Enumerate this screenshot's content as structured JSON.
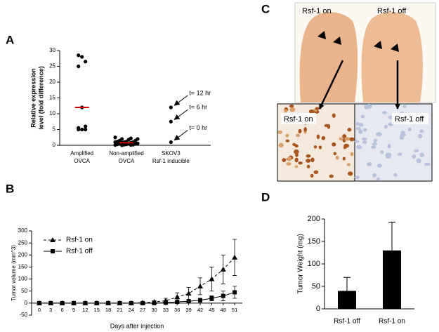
{
  "chart_data": [
    {
      "type": "strip",
      "label": "A",
      "ylabel": [
        "Relative expression",
        "level (fold difference)"
      ],
      "categories": [
        [
          "Amplified",
          "OVCA"
        ],
        [
          "Non-amplified",
          "OVCA"
        ],
        [
          "SKOV3",
          "Rsf-1 inducible"
        ]
      ],
      "values": [
        [
          28.5,
          28,
          26.5,
          25,
          12,
          6,
          5,
          5,
          5,
          5.5
        ],
        [
          2.5,
          2.2,
          2,
          2,
          1.8,
          1.5,
          1.5,
          1.2,
          1.2,
          1,
          1,
          1,
          0.8,
          0.8,
          0.6,
          0.5,
          0.5,
          0.4,
          0.3,
          0.3,
          0.2,
          0.2,
          0.1,
          0.1,
          0
        ],
        [
          12,
          7.5,
          1
        ]
      ],
      "means": [
        12,
        0.8,
        null
      ],
      "color": "#000000",
      "mean_color": "#d00000",
      "annotations": [
        "t= 12 hr",
        "t= 6 hr",
        "t= 0 hr"
      ],
      "ylim": [
        0,
        30
      ],
      "yticks": [
        0,
        5,
        10,
        15,
        20,
        25,
        30
      ]
    },
    {
      "type": "line",
      "label": "B",
      "ylabel": "Tumor volume (mm^3)",
      "xlabel": "Days after injection",
      "x": [
        0,
        3,
        6,
        9,
        12,
        15,
        18,
        21,
        24,
        27,
        30,
        33,
        36,
        39,
        42,
        45,
        48,
        51
      ],
      "xticks": [
        0,
        3,
        6,
        9,
        12,
        15,
        18,
        21,
        24,
        27,
        30,
        33,
        36,
        39,
        42,
        45,
        48,
        51
      ],
      "xlim": [
        -2,
        53
      ],
      "ylim": [
        -50,
        300
      ],
      "yticks": [
        -50,
        0,
        50,
        100,
        150,
        200,
        250,
        300
      ],
      "legend": "upper left",
      "series": [
        {
          "name": "Rsf-1 on",
          "color": "#000000",
          "marker": "triangle",
          "dash": true,
          "values": [
            0,
            0,
            0,
            0,
            0,
            0,
            0,
            0,
            0,
            2,
            5,
            10,
            25,
            40,
            70,
            100,
            140,
            190
          ],
          "errors": [
            0,
            0,
            0,
            0,
            0,
            0,
            0,
            0,
            0,
            3,
            5,
            10,
            18,
            25,
            35,
            50,
            60,
            75
          ]
        },
        {
          "name": "Rsf-1 off",
          "color": "#000000",
          "marker": "square",
          "dash": false,
          "values": [
            0,
            0,
            0,
            0,
            0,
            0,
            0,
            0,
            0,
            0,
            0,
            2,
            5,
            8,
            12,
            20,
            30,
            45
          ],
          "errors": [
            0,
            0,
            0,
            0,
            0,
            0,
            0,
            0,
            0,
            0,
            0,
            2,
            3,
            5,
            8,
            10,
            20,
            25
          ]
        }
      ]
    },
    {
      "type": "bar",
      "label": "D",
      "ylabel": "Tumor Weight (mg)",
      "categories": [
        "Rsf-1 off",
        "Rsf-1 on"
      ],
      "values": [
        40,
        130
      ],
      "errors": [
        30,
        63
      ],
      "color": "#000000",
      "ylim": [
        0,
        200
      ],
      "yticks": [
        0,
        50,
        100,
        150,
        200
      ]
    }
  ],
  "photo_panel": {
    "label": "C",
    "top_labels": [
      "Rsf-1 on",
      "Rsf-1 off"
    ],
    "bottom_labels": [
      "Rsf-1 on",
      "Rsf-1 off"
    ]
  }
}
